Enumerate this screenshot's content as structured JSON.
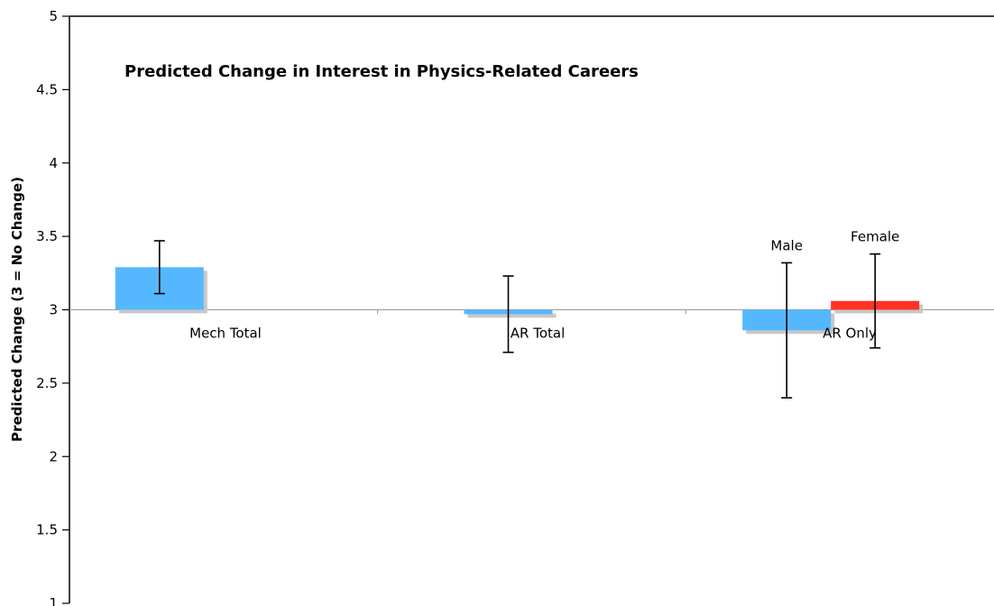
{
  "chart_data": {
    "type": "bar",
    "title": "Predicted Change in Interest in Physics-Related Careers",
    "xlabel": "",
    "ylabel": "Predicted Change (3 = No Change)",
    "ylim": [
      1,
      5
    ],
    "baseline": 3,
    "yticks": [
      "1",
      "1.5",
      "2",
      "2.5",
      "3",
      "3.5",
      "4",
      "4.5",
      "5"
    ],
    "grid": false,
    "categories": [
      "Mech Total",
      "AR Total",
      "AR Only"
    ],
    "bars": [
      {
        "category": "Mech Total",
        "value": 3.29,
        "error_low": 3.11,
        "error_high": 3.47,
        "color": "#55b8ff",
        "label": ""
      },
      {
        "category": "AR Total",
        "value": 2.97,
        "error_low": 2.71,
        "error_high": 3.23,
        "color": "#55b8ff",
        "label": ""
      },
      {
        "category": "AR Only",
        "value": 2.86,
        "error_low": 2.4,
        "error_high": 3.32,
        "color": "#55b8ff",
        "label": "Male"
      },
      {
        "category": "AR Only",
        "value": 3.06,
        "error_low": 2.74,
        "error_high": 3.38,
        "color": "#ff3322",
        "label": "Female"
      }
    ]
  }
}
